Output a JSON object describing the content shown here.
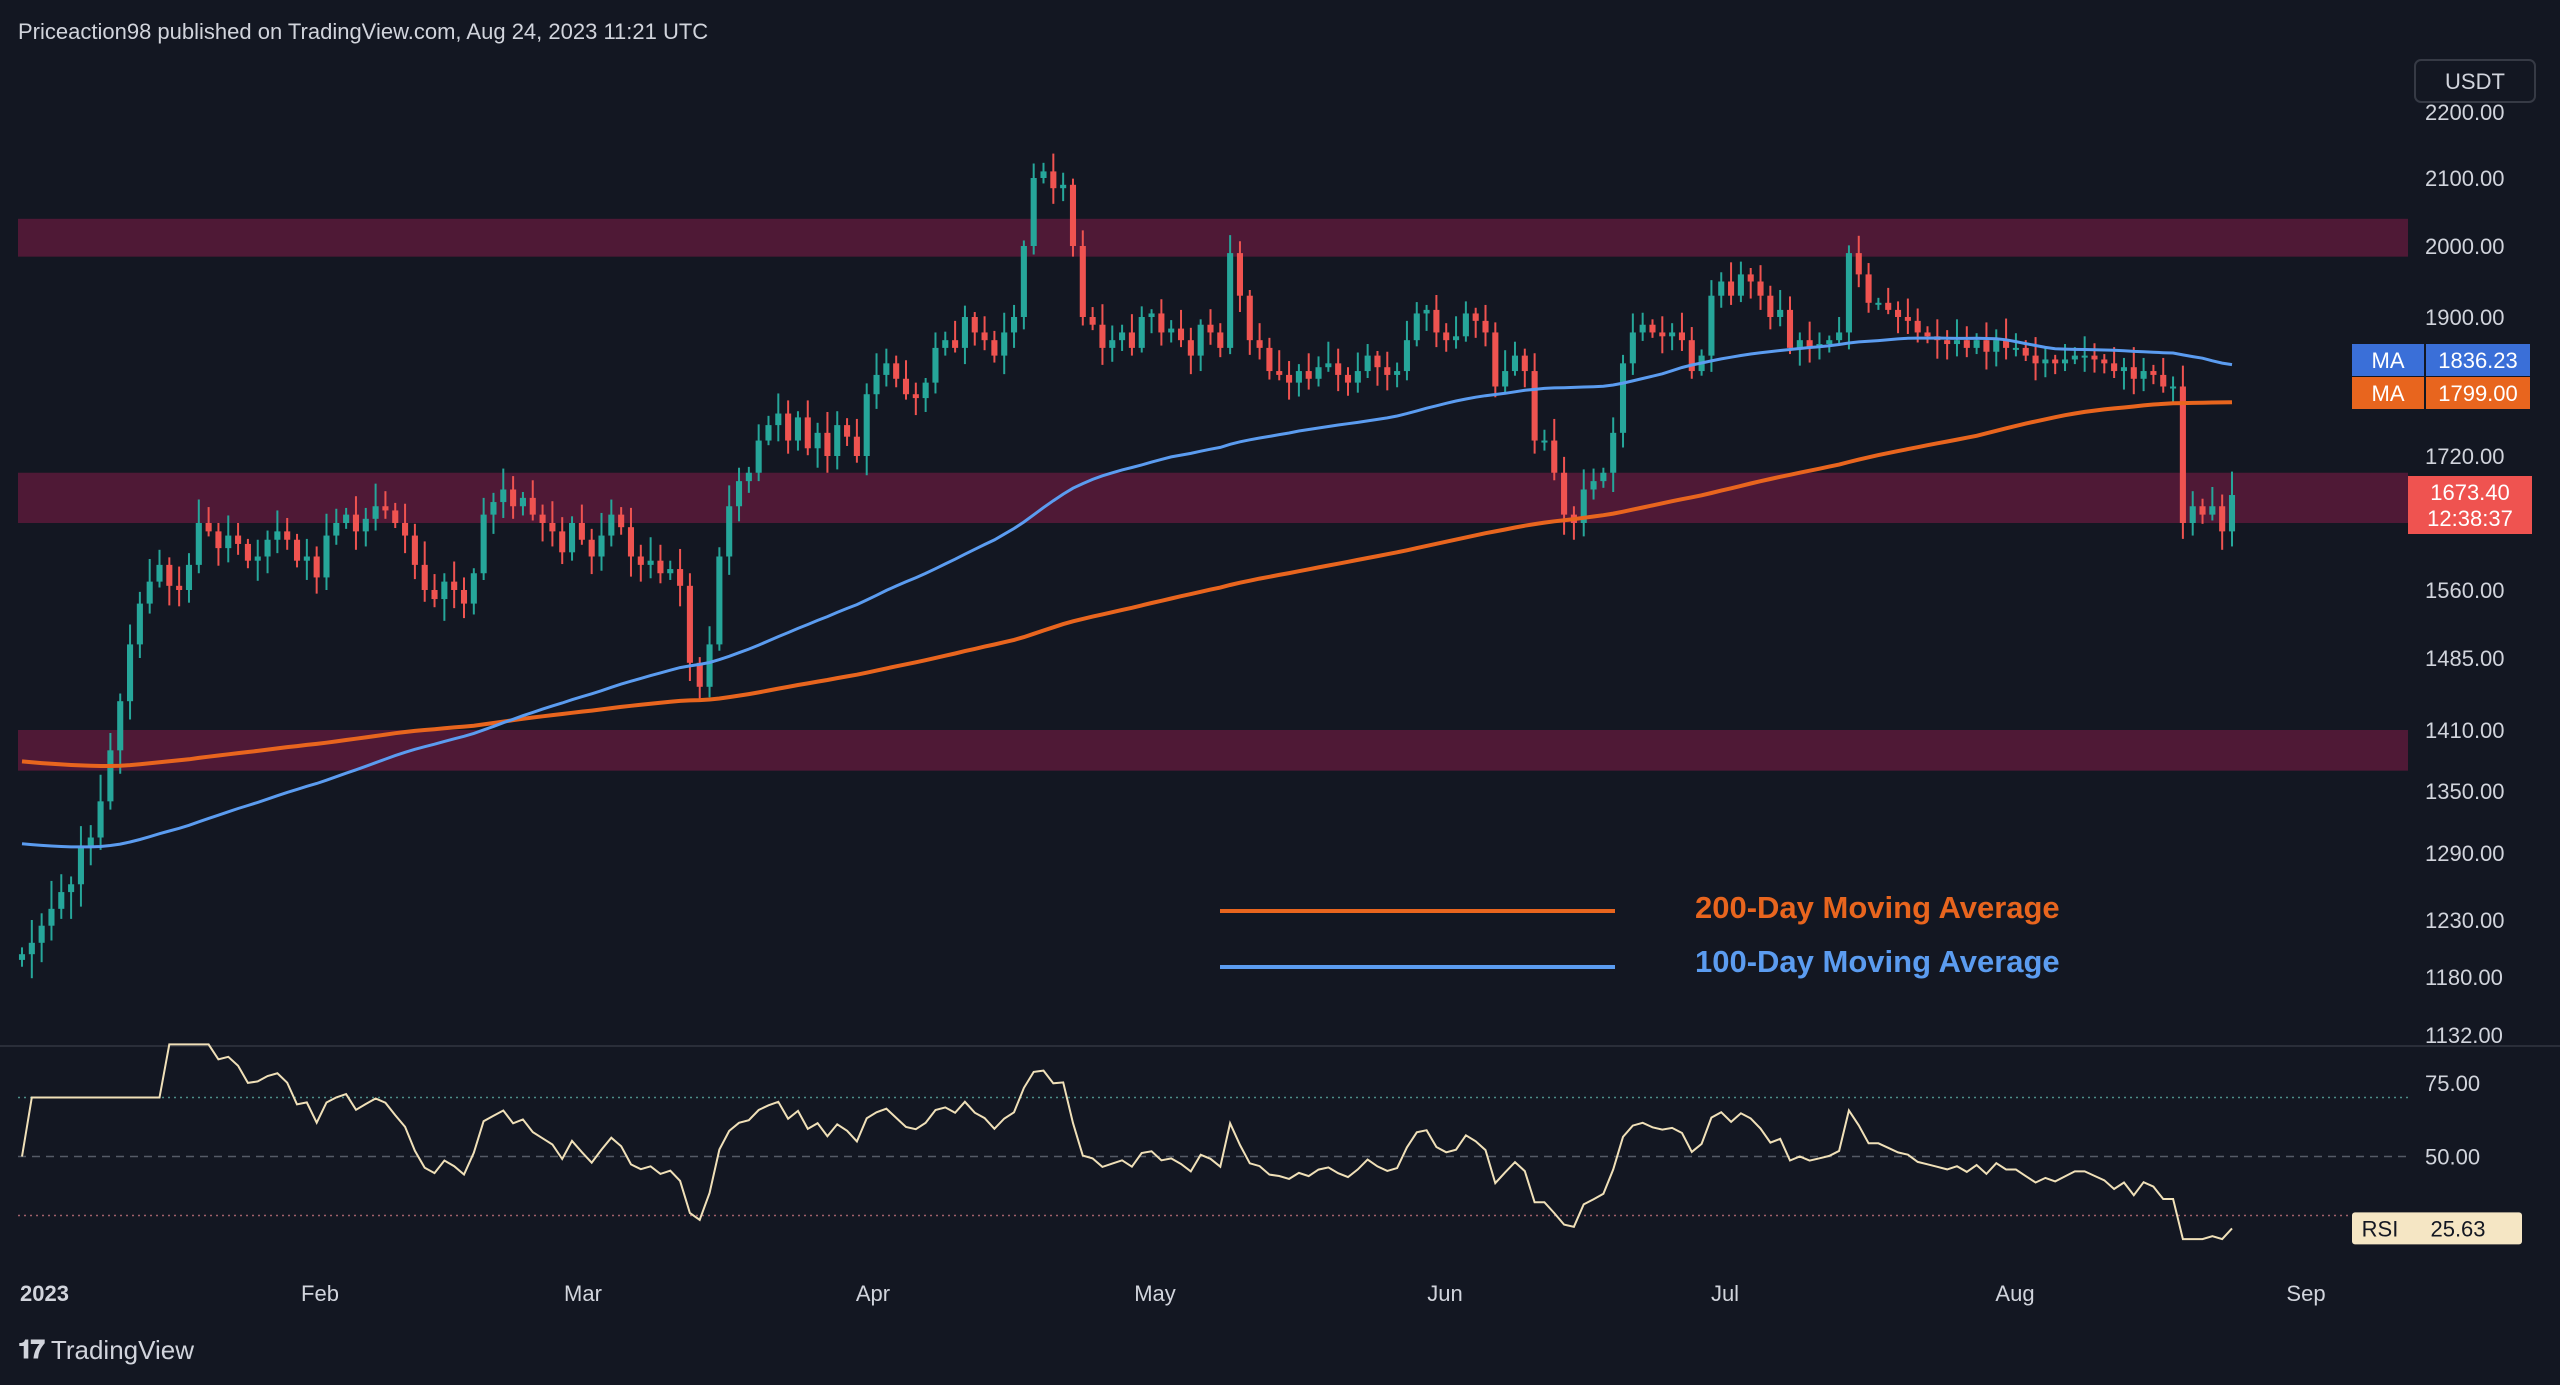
{
  "header": {
    "text": "Priceaction98 published on TradingView.com, Aug 24, 2023 11:21 UTC"
  },
  "footer": {
    "brand": "TradingView"
  },
  "currency_label": "USDT",
  "colors": {
    "background": "#131722",
    "up": "#26a69a",
    "down": "#ef5350",
    "zone": "#5a1a3a",
    "ma200": "#e8651e",
    "ma100": "#5b9cf0",
    "rsi": "#f0e0b8"
  },
  "price_axis": {
    "ticks": [
      "2200.00",
      "2100.00",
      "2000.00",
      "1900.00",
      "1720.00",
      "1560.00",
      "1485.00",
      "1410.00",
      "1350.00",
      "1290.00",
      "1230.00",
      "1180.00",
      "1132.00"
    ]
  },
  "rsi_axis": {
    "ticks": [
      "75.00",
      "50.00"
    ]
  },
  "time_axis": {
    "labels": [
      "2023",
      "Feb",
      "Mar",
      "Apr",
      "May",
      "Jun",
      "Jul",
      "Aug",
      "Sep"
    ]
  },
  "price_tags": {
    "ma100": {
      "label": "MA",
      "value": "1836.23"
    },
    "ma200": {
      "label": "MA",
      "value": "1799.00"
    },
    "last": {
      "value": "1673.40",
      "countdown": "12:38:37"
    },
    "rsi": {
      "label": "RSI",
      "value": "25.63"
    }
  },
  "legend": {
    "ma200": "200-Day Moving Average",
    "ma100": "100-Day Moving Average"
  },
  "chart_data": {
    "type": "candlestick",
    "symbol_currency": "USDT",
    "x_range": [
      "2023-01-01",
      "2023-08-24"
    ],
    "y_range": [
      1132,
      2200
    ],
    "zones": [
      {
        "low": 1985,
        "high": 2040
      },
      {
        "low": 1640,
        "high": 1700
      },
      {
        "low": 1370,
        "high": 1410
      }
    ],
    "candles_close": [
      1200,
      1210,
      1225,
      1240,
      1255,
      1262,
      1295,
      1305,
      1340,
      1390,
      1440,
      1500,
      1545,
      1570,
      1590,
      1565,
      1560,
      1590,
      1640,
      1630,
      1610,
      1625,
      1615,
      1595,
      1600,
      1620,
      1630,
      1620,
      1595,
      1600,
      1575,
      1625,
      1640,
      1650,
      1630,
      1645,
      1660,
      1655,
      1640,
      1625,
      1590,
      1560,
      1550,
      1570,
      1560,
      1545,
      1580,
      1650,
      1665,
      1680,
      1660,
      1670,
      1650,
      1640,
      1630,
      1605,
      1640,
      1620,
      1600,
      1625,
      1650,
      1635,
      1600,
      1590,
      1595,
      1580,
      1585,
      1565,
      1480,
      1455,
      1500,
      1600,
      1660,
      1690,
      1700,
      1740,
      1760,
      1775,
      1740,
      1770,
      1730,
      1750,
      1720,
      1760,
      1745,
      1720,
      1800,
      1825,
      1840,
      1820,
      1800,
      1795,
      1815,
      1860,
      1870,
      1860,
      1900,
      1880,
      1870,
      1850,
      1880,
      1900,
      2000,
      2100,
      2110,
      2085,
      2090,
      2000,
      1900,
      1890,
      1860,
      1870,
      1880,
      1860,
      1900,
      1905,
      1880,
      1885,
      1870,
      1850,
      1890,
      1880,
      1860,
      1990,
      1930,
      1870,
      1860,
      1830,
      1825,
      1815,
      1830,
      1820,
      1835,
      1840,
      1825,
      1815,
      1830,
      1850,
      1835,
      1825,
      1830,
      1870,
      1905,
      1910,
      1880,
      1870,
      1875,
      1905,
      1895,
      1880,
      1810,
      1830,
      1850,
      1830,
      1740,
      1740,
      1700,
      1650,
      1640,
      1680,
      1690,
      1700,
      1750,
      1840,
      1880,
      1890,
      1880,
      1875,
      1880,
      1870,
      1830,
      1850,
      1930,
      1950,
      1930,
      1960,
      1950,
      1930,
      1900,
      1910,
      1860,
      1870,
      1860,
      1865,
      1870,
      1880,
      1990,
      1960,
      1920,
      1920,
      1910,
      1900,
      1895,
      1880,
      1875,
      1870,
      1865,
      1870,
      1860,
      1870,
      1855,
      1870,
      1860,
      1860,
      1850,
      1840,
      1845,
      1840,
      1845,
      1850,
      1850,
      1845,
      1840,
      1830,
      1835,
      1820,
      1830,
      1825,
      1810,
      1810,
      1640,
      1660,
      1650,
      1660,
      1630,
      1673.4
    ],
    "rsi": {
      "levels": [
        70,
        50,
        30
      ],
      "last": 25.63
    },
    "series": [
      {
        "name": "200-Day Moving Average",
        "last": 1799.0
      },
      {
        "name": "100-Day Moving Average",
        "last": 1836.23
      }
    ]
  }
}
